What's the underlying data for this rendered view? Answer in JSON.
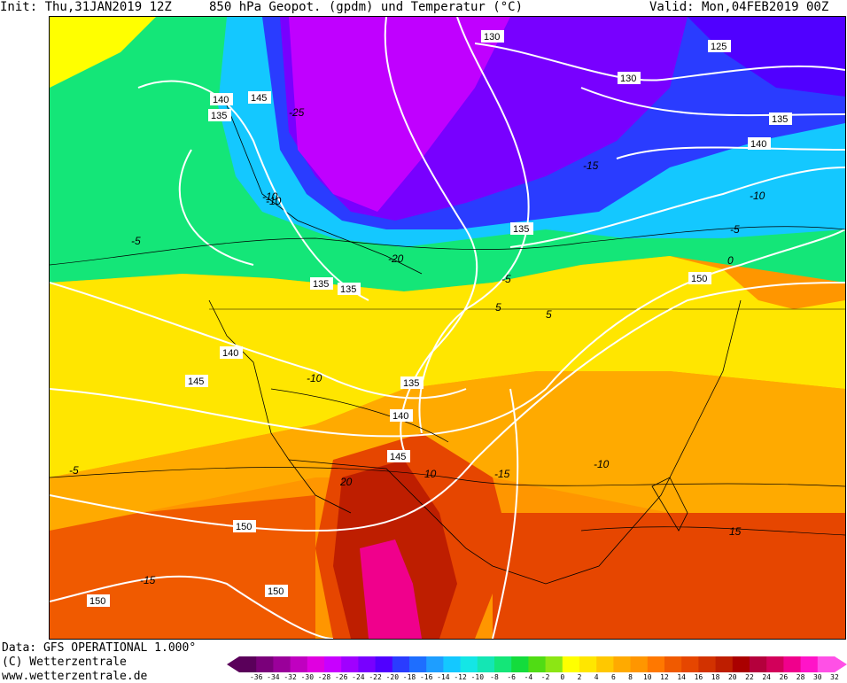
{
  "header": {
    "init": "Init: Thu,31JAN2019 12Z",
    "title": "850 hPa Geopot. (gpdm) und Temperatur (°C)",
    "valid": "Valid: Mon,04FEB2019 00Z"
  },
  "footer": {
    "data_source": "Data: GFS OPERATIONAL 1.000°",
    "copyright": "(C) Wetterzentrale",
    "website": "www.wetterzentrale.de"
  },
  "legend": {
    "colors": [
      "#5a005a",
      "#7a007a",
      "#9a009a",
      "#c000c0",
      "#e000e0",
      "#c800ff",
      "#a000ff",
      "#7800ff",
      "#5000ff",
      "#2a3cff",
      "#1e6eff",
      "#1e9eff",
      "#14c8ff",
      "#14e6e6",
      "#14e6b4",
      "#14e678",
      "#14dc3c",
      "#50dc14",
      "#8ce614",
      "#ffff00",
      "#ffe600",
      "#ffc800",
      "#ffaa00",
      "#ff9600",
      "#ff7800",
      "#f05a00",
      "#e64600",
      "#d23200",
      "#be1e00",
      "#aa0000",
      "#b4003c",
      "#d2005a",
      "#f0008c",
      "#ff14c8",
      "#ff50e6"
    ],
    "labels": [
      "-36",
      "-34",
      "-32",
      "-30",
      "-28",
      "-26",
      "-24",
      "-22",
      "-20",
      "-18",
      "-16",
      "-14",
      "-12",
      "-10",
      "-8",
      "-6",
      "-4",
      "-2",
      "0",
      "2",
      "4",
      "6",
      "8",
      "10",
      "12",
      "14",
      "16",
      "18",
      "20",
      "22",
      "24",
      "26",
      "28",
      "30",
      "32"
    ]
  },
  "map": {
    "geopotential_labels": [
      "130",
      "125",
      "130",
      "135",
      "140",
      "145",
      "140",
      "135",
      "135",
      "135",
      "135",
      "150",
      "140",
      "145",
      "135",
      "140",
      "145",
      "150",
      "150",
      "150"
    ],
    "temperature_labels": [
      "-25",
      "-15",
      "-10",
      "-5",
      "0",
      "-5",
      "-10",
      "-20",
      "-10",
      "-5",
      "-10",
      "5",
      "10",
      "15",
      "20",
      "-10",
      "-15",
      "-15",
      "-5",
      "5"
    ]
  }
}
